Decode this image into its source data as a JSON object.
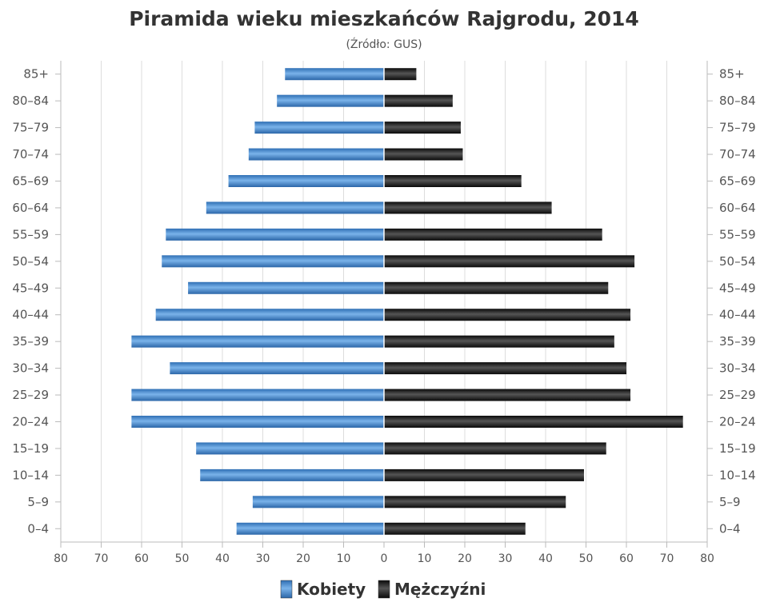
{
  "chart_data": {
    "type": "bar",
    "title": "Piramida wieku mieszkańców Rajgrodu, 2014",
    "subtitle": "(Źródło: GUS)",
    "categories": [
      "85+",
      "80–84",
      "75–79",
      "70–74",
      "65–69",
      "60–64",
      "55–59",
      "50–54",
      "45–49",
      "40–44",
      "35–39",
      "30–34",
      "25–29",
      "20–24",
      "15–19",
      "10–14",
      "5–9",
      "0–4"
    ],
    "series": [
      {
        "name": "Kobiety",
        "color": "#4a8fd6",
        "values": [
          24.5,
          26.5,
          32,
          33.5,
          38.5,
          44,
          54,
          55,
          48.5,
          56.5,
          62.5,
          53,
          62.5,
          62.5,
          46.5,
          45.5,
          32.5,
          36.5
        ]
      },
      {
        "name": "Mężczyźni",
        "color": "#222222",
        "values": [
          8,
          17,
          19,
          19.5,
          34,
          41.5,
          54,
          62,
          55.5,
          61,
          57,
          60,
          61,
          74,
          55,
          49.5,
          45,
          35
        ]
      }
    ],
    "xlim": [
      -80,
      80
    ],
    "xticks": [
      "80",
      "70",
      "60",
      "50",
      "40",
      "30",
      "20",
      "10",
      "0",
      "10",
      "20",
      "30",
      "40",
      "50",
      "60",
      "70",
      "80"
    ],
    "grid": true,
    "legend_position": "bottom"
  }
}
